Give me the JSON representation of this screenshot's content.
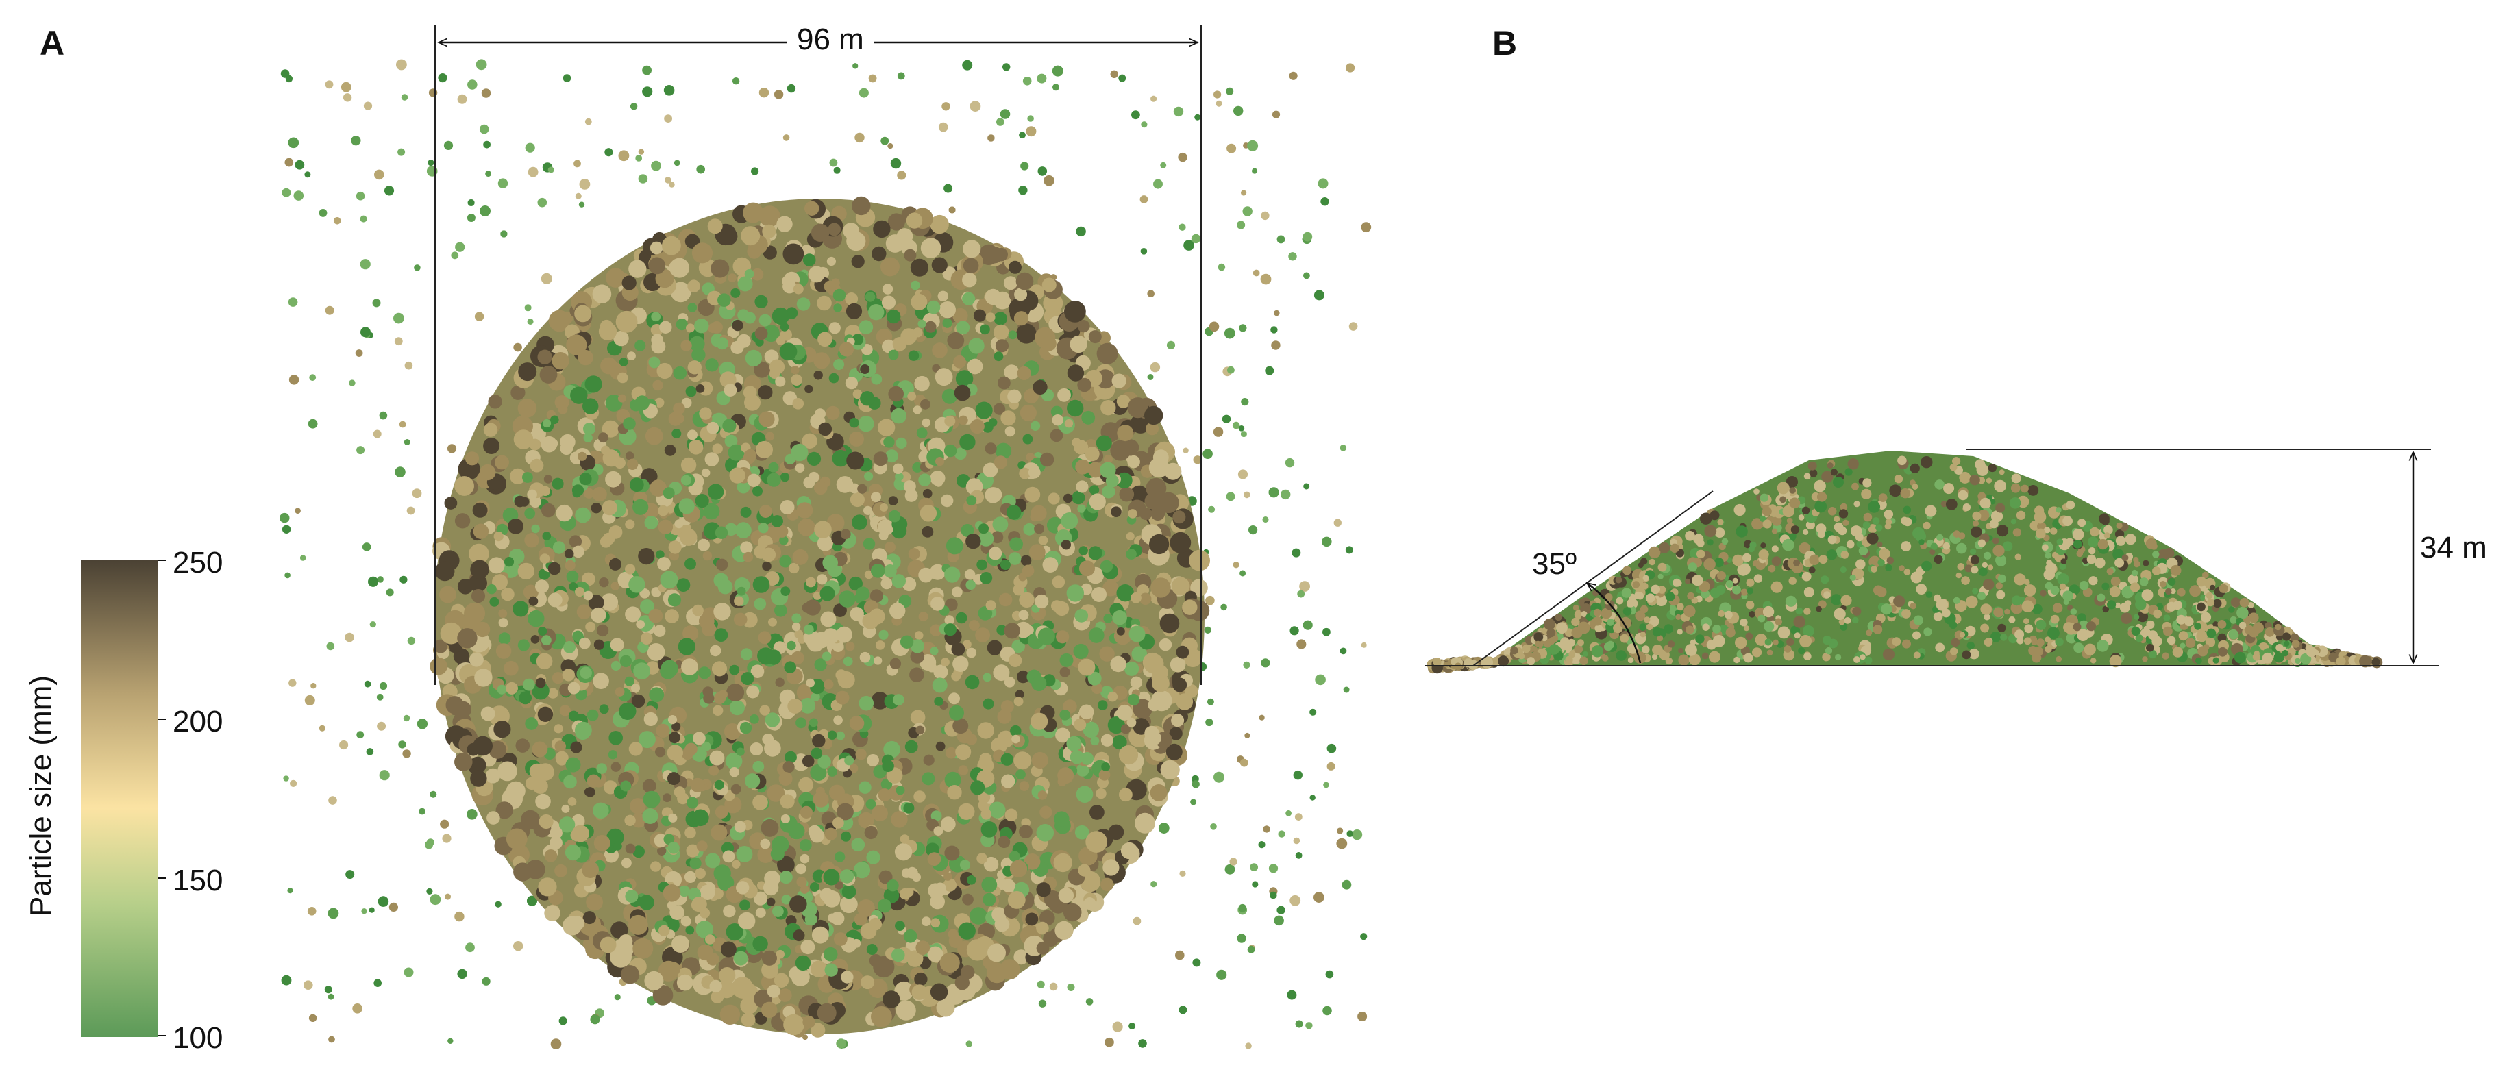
{
  "panels": {
    "a": {
      "letter": "A",
      "width_label": "96 m",
      "view": "top"
    },
    "b": {
      "letter": "B",
      "height_label": "34 m",
      "angle_label": "35º",
      "view": "side"
    }
  },
  "colorbar": {
    "title": "Particle size (mm)",
    "ticks": [
      "250",
      "200",
      "150",
      "100"
    ],
    "min": 100,
    "max": 250,
    "colors": [
      "#5c9a58",
      "#d6dd98",
      "#fbe3a3",
      "#b39b6b",
      "#4b4234"
    ]
  },
  "particle_palette": [
    "#3f8a3c",
    "#5b9d4e",
    "#77b064",
    "#c8b98a",
    "#b8a671",
    "#a08c5b",
    "#7c6a4a",
    "#4e4331"
  ]
}
